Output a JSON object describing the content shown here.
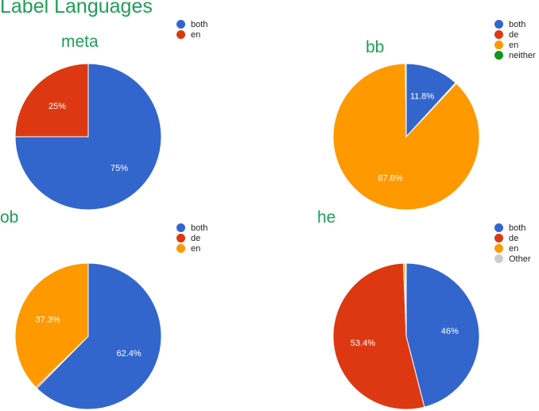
{
  "title": "Label Languages",
  "chart_data": [
    {
      "type": "pie",
      "title": "meta",
      "legend": [
        "both",
        "en"
      ],
      "slices": [
        {
          "name": "both",
          "value": 75,
          "label": "75%",
          "color": "#3366cc"
        },
        {
          "name": "en",
          "value": 25,
          "label": "25%",
          "color": "#dc3912"
        }
      ]
    },
    {
      "type": "pie",
      "title": "bb",
      "legend": [
        "both",
        "de",
        "en",
        "neither"
      ],
      "slices": [
        {
          "name": "both",
          "value": 11.8,
          "label": "11.8%",
          "color": "#3366cc"
        },
        {
          "name": "de",
          "value": 0.2,
          "label": "",
          "color": "#dc3912"
        },
        {
          "name": "en",
          "value": 87.8,
          "label": "87.8%",
          "color": "#ff9900"
        },
        {
          "name": "neither",
          "value": 0.2,
          "label": "",
          "color": "#109618"
        }
      ]
    },
    {
      "type": "pie",
      "title": "ob",
      "legend": [
        "both",
        "de",
        "en"
      ],
      "slices": [
        {
          "name": "both",
          "value": 62.4,
          "label": "62.4%",
          "color": "#3366cc"
        },
        {
          "name": "de",
          "value": 0.3,
          "label": "",
          "color": "#dc3912"
        },
        {
          "name": "en",
          "value": 37.3,
          "label": "37.3%",
          "color": "#ff9900"
        }
      ]
    },
    {
      "type": "pie",
      "title": "he",
      "legend": [
        "both",
        "de",
        "en",
        "Other"
      ],
      "slices": [
        {
          "name": "both",
          "value": 46,
          "label": "46%",
          "color": "#3366cc"
        },
        {
          "name": "de",
          "value": 53.4,
          "label": "53.4%",
          "color": "#dc3912"
        },
        {
          "name": "en",
          "value": 0.4,
          "label": "",
          "color": "#ff9900"
        },
        {
          "name": "Other",
          "value": 0.2,
          "label": "",
          "color": "#cccccc"
        }
      ]
    }
  ]
}
